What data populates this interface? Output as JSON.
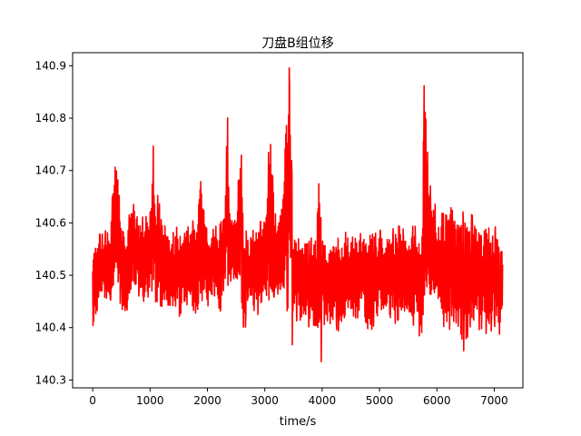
{
  "chart_data": {
    "type": "line",
    "title": "刀盘B组位移",
    "xlabel": "time/s",
    "ylabel": "",
    "xlim": [
      -350,
      7500
    ],
    "ylim": [
      140.285,
      140.925
    ],
    "x_ticks": [
      0,
      1000,
      2000,
      3000,
      4000,
      5000,
      6000,
      7000
    ],
    "x_tick_labels": [
      "0",
      "1000",
      "2000",
      "3000",
      "4000",
      "5000",
      "6000",
      "7000"
    ],
    "y_ticks": [
      140.3,
      140.4,
      140.5,
      140.6,
      140.7,
      140.8,
      140.9
    ],
    "y_tick_labels": [
      "140.3",
      "140.4",
      "140.5",
      "140.6",
      "140.7",
      "140.8",
      "140.9"
    ],
    "grid": false,
    "series": [
      {
        "name": "刀盘B组位移",
        "color": "#ff0000",
        "x": [
          0,
          100,
          200,
          300,
          400,
          430,
          500,
          600,
          640,
          700,
          800,
          900,
          1000,
          1060,
          1080,
          1200,
          1300,
          1400,
          1500,
          1600,
          1700,
          1800,
          1880,
          1900,
          2000,
          2100,
          2200,
          2300,
          2350,
          2380,
          2400,
          2500,
          2580,
          2620,
          2650,
          2700,
          2800,
          2900,
          3000,
          3100,
          3150,
          3200,
          3300,
          3400,
          3430,
          3460,
          3480,
          3500,
          3550,
          3600,
          3700,
          3800,
          3900,
          3950,
          3980,
          4000,
          4100,
          4200,
          4300,
          4400,
          4500,
          4600,
          4700,
          4800,
          4900,
          5000,
          5100,
          5200,
          5300,
          5400,
          5500,
          5600,
          5700,
          5750,
          5780,
          5800,
          5850,
          5900,
          6000,
          6100,
          6200,
          6300,
          6400,
          6500,
          6540,
          6600,
          6700,
          6800,
          6900,
          7000,
          7050,
          7100,
          7150
        ],
        "lo": [
          140.39,
          140.42,
          140.44,
          140.45,
          140.46,
          140.46,
          140.44,
          140.38,
          140.45,
          140.47,
          140.46,
          140.43,
          140.44,
          140.46,
          140.45,
          140.44,
          140.43,
          140.41,
          140.42,
          140.43,
          140.42,
          140.4,
          140.44,
          140.45,
          140.44,
          140.45,
          140.42,
          140.46,
          140.47,
          140.5,
          140.49,
          140.47,
          140.46,
          140.34,
          140.38,
          140.44,
          140.43,
          140.42,
          140.44,
          140.4,
          140.46,
          140.45,
          140.44,
          140.43,
          140.5,
          140.55,
          140.33,
          140.42,
          140.41,
          140.4,
          140.39,
          140.4,
          140.38,
          140.33,
          140.31,
          140.42,
          140.38,
          140.4,
          140.39,
          140.4,
          140.41,
          140.39,
          140.42,
          140.38,
          140.4,
          140.41,
          140.42,
          140.4,
          140.41,
          140.42,
          140.41,
          140.4,
          140.38,
          140.37,
          140.45,
          140.5,
          140.45,
          140.44,
          140.42,
          140.4,
          140.39,
          140.41,
          140.4,
          140.33,
          140.39,
          140.4,
          140.39,
          140.4,
          140.38,
          140.4,
          140.41,
          140.38,
          140.44
        ],
        "hi": [
          140.55,
          140.6,
          140.59,
          140.58,
          140.75,
          140.74,
          140.6,
          140.59,
          140.62,
          140.64,
          140.63,
          140.61,
          140.62,
          140.76,
          140.68,
          140.62,
          140.61,
          140.6,
          140.59,
          140.6,
          140.61,
          140.6,
          140.72,
          140.7,
          140.6,
          140.59,
          140.6,
          140.61,
          140.81,
          140.67,
          140.65,
          140.62,
          140.79,
          140.6,
          140.59,
          140.58,
          140.59,
          140.6,
          140.62,
          140.8,
          140.66,
          140.63,
          140.65,
          140.89,
          140.9,
          140.87,
          140.62,
          140.57,
          140.6,
          140.58,
          140.56,
          140.57,
          140.59,
          140.73,
          140.7,
          140.58,
          140.57,
          140.58,
          140.57,
          140.58,
          140.6,
          140.59,
          140.58,
          140.59,
          140.6,
          140.59,
          140.58,
          140.59,
          140.6,
          140.59,
          140.58,
          140.6,
          140.59,
          140.62,
          140.88,
          140.86,
          140.7,
          140.66,
          140.63,
          140.65,
          140.64,
          140.62,
          140.61,
          140.63,
          140.6,
          140.62,
          140.61,
          140.6,
          140.61,
          140.6,
          140.59,
          140.57,
          140.55
        ]
      }
    ]
  }
}
